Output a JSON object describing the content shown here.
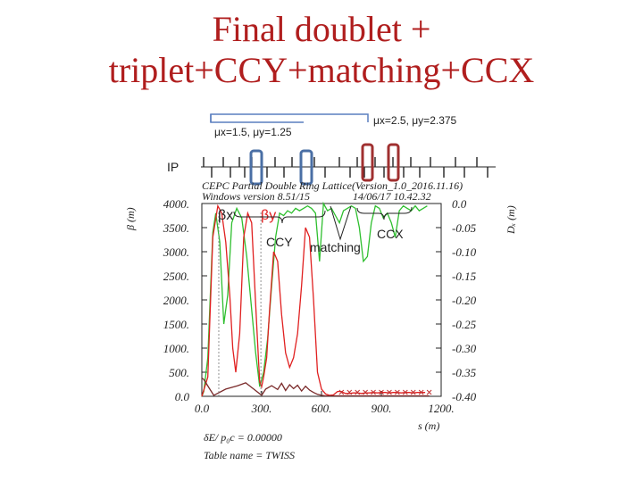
{
  "slide": {
    "title_line1": "Final doublet +",
    "title_line2": "triplet+CCY+matching+CCX"
  },
  "annotations": {
    "mu_left": "μx=1.5,  μy=1.25",
    "mu_right": "μx=2.5,  μy=2.375",
    "ip": "IP",
    "ccy": "CCY",
    "matching": "matching",
    "ccx": "CCX"
  },
  "plot_header": {
    "line1": "CEPC Partial Double Ring Lattice(Version_1.0_2016.11.16)",
    "line2": "Windows version 8.51/15",
    "date": "14/06/17  10.42.32",
    "footer1": "δE/ p₀c  =    0.00000",
    "footer2": "Table name = TWISS"
  },
  "colors": {
    "title": "#b01e1e",
    "beta_x": "#2fbf2f",
    "beta_y": "#e02020",
    "dispersion": "#7a2a2a",
    "magnet_blue_outline": "#4a6fa5",
    "magnet_red_outline": "#a03030",
    "bracket": "#5a7fbf"
  },
  "chart_data": {
    "type": "line",
    "title": "",
    "xlabel": "s (m)",
    "ylabel_left": "β (m)",
    "ylabel_right": "Dₓ (m)",
    "xlim": [
      0,
      1200
    ],
    "ylim_left": [
      0,
      4000
    ],
    "ylim_right": [
      -0.4,
      0.0
    ],
    "x_ticks": [
      "0.0",
      "300.",
      "600.",
      "900.",
      "1200."
    ],
    "y_ticks_left": [
      "0.0",
      "500.",
      "1000.",
      "1500.",
      "2000.",
      "2500.",
      "3000.",
      "3500.",
      "4000."
    ],
    "y_ticks_right": [
      "-0.40",
      "-0.35",
      "-0.30",
      "-0.25",
      "-0.20",
      "-0.15",
      "-0.10",
      "-0.05",
      "0.0"
    ],
    "legend": [
      "βx",
      "βy",
      "Dx"
    ],
    "series": [
      {
        "name": "βx",
        "axis": "left",
        "x": [
          0,
          10,
          30,
          55,
          70,
          90,
          110,
          130,
          150,
          175,
          200,
          225,
          250,
          270,
          290,
          310,
          330,
          350,
          370,
          390,
          410,
          430,
          450,
          470,
          490,
          510,
          530,
          550,
          570,
          590,
          610,
          630,
          650,
          670,
          690,
          710,
          730,
          750,
          770,
          790,
          810,
          830,
          850,
          870,
          890,
          910,
          930,
          950,
          970,
          990,
          1010,
          1030,
          1050,
          1070,
          1090,
          1110,
          1130
        ],
        "y": [
          0,
          100,
          800,
          3400,
          3800,
          3200,
          1500,
          2100,
          3600,
          3900,
          3700,
          2900,
          1800,
          900,
          200,
          500,
          1200,
          2300,
          3300,
          3800,
          3750,
          3850,
          3800,
          3900,
          3850,
          3900,
          3950,
          3900,
          3800,
          2800,
          4000,
          3850,
          3900,
          3750,
          3600,
          3850,
          3900,
          3950,
          3900,
          3500,
          2800,
          2900,
          3600,
          3950,
          3900,
          3700,
          3800,
          3600,
          3300,
          3850,
          3950,
          3900,
          3850,
          3950,
          3850,
          3900,
          3950
        ]
      },
      {
        "name": "βy",
        "axis": "left",
        "x": [
          0,
          30,
          55,
          80,
          100,
          120,
          140,
          155,
          170,
          190,
          210,
          230,
          250,
          270,
          285,
          290,
          300,
          310,
          325,
          340,
          360,
          380,
          400,
          420,
          440,
          460,
          480,
          500,
          520,
          540,
          560,
          580,
          600,
          620,
          640,
          660,
          680,
          700,
          720,
          740,
          760,
          780,
          800,
          820,
          840,
          860,
          880,
          900,
          920,
          940,
          960,
          980,
          1000,
          1020,
          1040,
          1060,
          1080,
          1100,
          1120
        ],
        "y": [
          0,
          400,
          3300,
          3950,
          3800,
          3200,
          2100,
          1000,
          500,
          1300,
          3300,
          3800,
          3600,
          1900,
          700,
          300,
          200,
          400,
          800,
          1800,
          3000,
          2800,
          1700,
          900,
          600,
          800,
          1300,
          2300,
          3500,
          3300,
          2000,
          500,
          150,
          50,
          20,
          30,
          100,
          100,
          60,
          60,
          70,
          70,
          60,
          70,
          70,
          80,
          70,
          80,
          80,
          70,
          80,
          80,
          70,
          80,
          80,
          70,
          80,
          80,
          80
        ]
      },
      {
        "name": "Dx",
        "axis": "right",
        "x": [
          0,
          10,
          40,
          60,
          120,
          180,
          220,
          260,
          300,
          320,
          350,
          380,
          400,
          420,
          440,
          460,
          480,
          500,
          520,
          540,
          560,
          580,
          600,
          620,
          660,
          700,
          740,
          780,
          820,
          860,
          900,
          940,
          980,
          1020,
          1060,
          1100,
          1140
        ],
        "y": [
          -0.362,
          -0.365,
          -0.385,
          -0.398,
          -0.385,
          -0.378,
          -0.372,
          -0.385,
          -0.398,
          -0.385,
          -0.378,
          -0.386,
          -0.373,
          -0.388,
          -0.376,
          -0.384,
          -0.377,
          -0.389,
          -0.379,
          -0.387,
          -0.392,
          -0.396,
          -0.398,
          -0.399,
          -0.399,
          -0.399,
          -0.399,
          -0.399,
          -0.399,
          -0.399,
          -0.399,
          -0.399,
          -0.399,
          -0.399,
          -0.399,
          -0.399,
          -0.399
        ]
      }
    ]
  }
}
